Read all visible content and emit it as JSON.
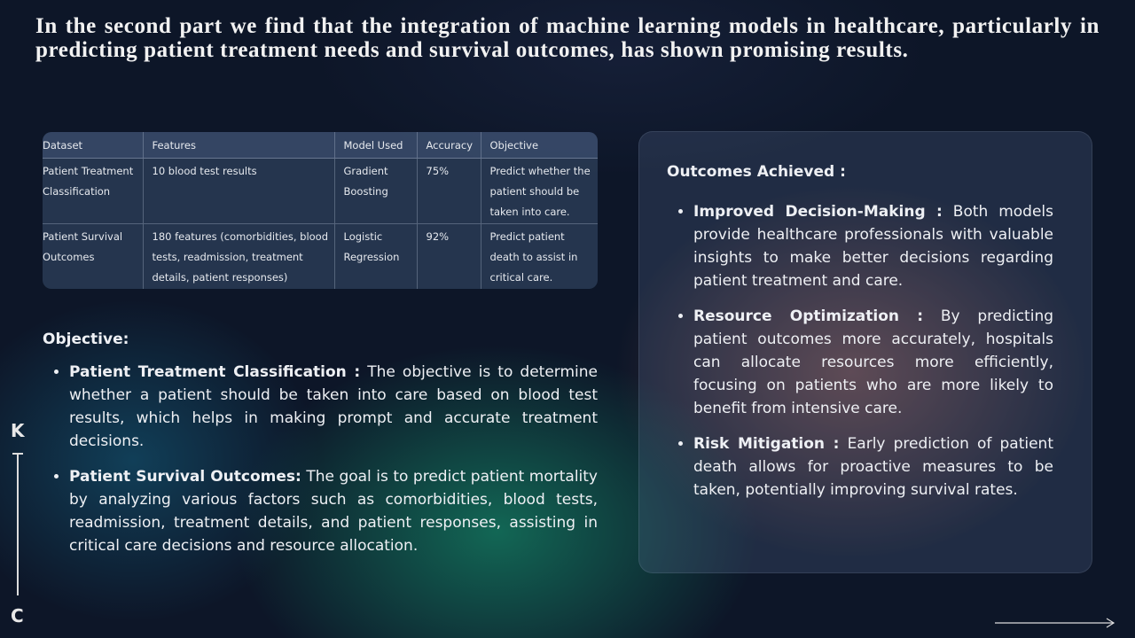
{
  "title": "In the second part we find that the integration of machine learning models in healthcare, particularly in predicting patient treatment needs and survival outcomes, has shown promising results.",
  "table": {
    "headers": [
      "Dataset",
      "Features",
      "Model Used",
      "Accuracy",
      "Objective"
    ],
    "rows": [
      [
        "Patient Treatment Classification",
        "10 blood test results",
        "Gradient Boosting",
        "75%",
        "Predict whether the patient should be taken into care."
      ],
      [
        "Patient Survival Outcomes",
        "180 features (comorbidities, blood tests, readmission, treatment details, patient responses)",
        "Logistic Regression",
        "92%",
        "Predict patient death to assist in critical care."
      ]
    ]
  },
  "objective": {
    "heading": "Objective:",
    "items": [
      {
        "lead": "Patient Treatment Classification :",
        "text": "The objective is to determine whether a patient should be taken into care based on blood test results, which helps in making prompt and accurate treatment decisions."
      },
      {
        "lead": "Patient Survival Outcomes:",
        "text": "The goal is to predict patient mortality by analyzing various factors such as comorbidities, blood tests, readmission, treatment details, and patient responses, assisting in critical care decisions and resource allocation."
      }
    ]
  },
  "outcomes": {
    "heading": "Outcomes Achieved :",
    "items": [
      {
        "lead": "Improved Decision-Making :",
        "text": "Both models provide healthcare professionals with valuable insights to make better decisions regarding patient treatment and care."
      },
      {
        "lead": "Resource Optimization :",
        "text": "By predicting patient outcomes more accurately, hospitals can allocate resources more efficiently, focusing on patients who are more likely to benefit from intensive care."
      },
      {
        "lead": "Risk Mitigation :",
        "text": "Early prediction of patient death allows for proactive measures to be taken, potentially improving survival rates."
      }
    ]
  },
  "side": {
    "top": "K",
    "bottom": "C"
  }
}
